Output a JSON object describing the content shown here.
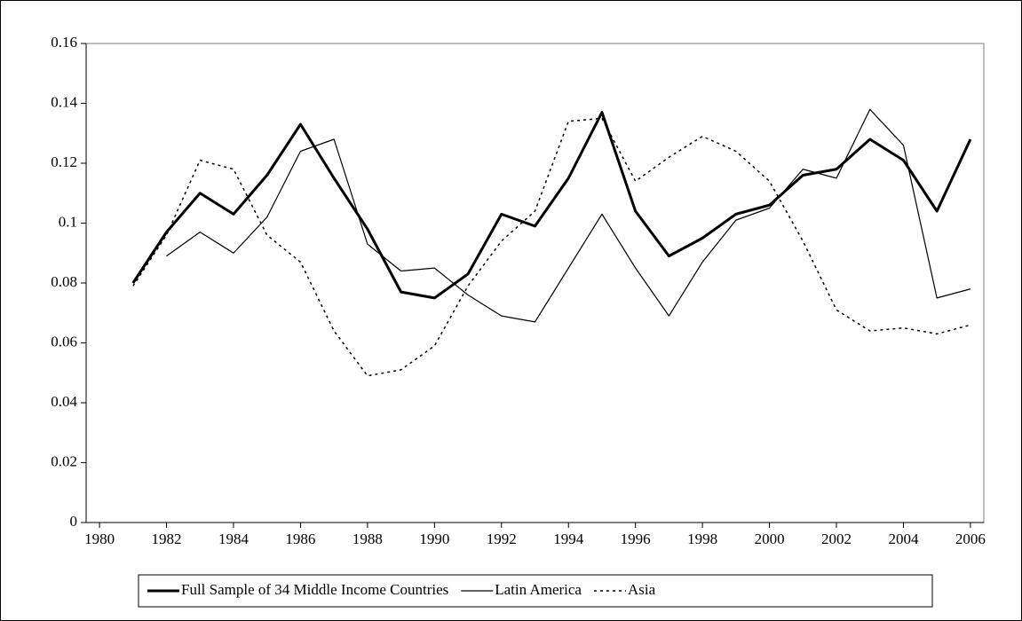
{
  "chart_data": {
    "type": "line",
    "x": [
      1981,
      1982,
      1983,
      1984,
      1985,
      1986,
      1987,
      1988,
      1989,
      1990,
      1991,
      1992,
      1993,
      1994,
      1995,
      1996,
      1997,
      1998,
      1999,
      2000,
      2001,
      2002,
      2003,
      2004,
      2005,
      2006
    ],
    "series": [
      {
        "name": "Full Sample of 34 Middle Income Countries",
        "color": "#000000",
        "linewidth": 3,
        "linestyle": "solid",
        "values": [
          0.08,
          0.097,
          0.11,
          0.103,
          0.116,
          0.133,
          0.115,
          0.098,
          0.077,
          0.075,
          0.083,
          0.103,
          0.099,
          0.115,
          0.137,
          0.104,
          0.089,
          0.095,
          0.103,
          0.106,
          0.116,
          0.118,
          0.128,
          0.121,
          0.104,
          0.128
        ]
      },
      {
        "name": "Latin America",
        "color": "#000000",
        "linewidth": 1.2,
        "linestyle": "solid",
        "values": [
          null,
          0.089,
          0.097,
          0.09,
          0.102,
          0.124,
          0.128,
          0.093,
          0.084,
          0.085,
          0.076,
          0.069,
          0.067,
          0.085,
          0.103,
          0.085,
          0.069,
          0.087,
          0.101,
          0.105,
          0.118,
          0.115,
          0.138,
          0.126,
          0.075,
          0.078
        ]
      },
      {
        "name": "Asia",
        "color": "#000000",
        "linewidth": 1.5,
        "linestyle": "dotted",
        "values": [
          0.079,
          0.096,
          0.121,
          0.118,
          0.096,
          0.087,
          0.064,
          0.049,
          0.051,
          0.059,
          0.079,
          0.094,
          0.104,
          0.134,
          0.135,
          0.114,
          0.122,
          0.129,
          0.124,
          0.114,
          0.094,
          0.071,
          0.064,
          0.065,
          0.063,
          0.066
        ]
      }
    ],
    "xlim": [
      1979.6,
      2006.4
    ],
    "xticks": [
      1980,
      1982,
      1984,
      1986,
      1988,
      1990,
      1992,
      1994,
      1996,
      1998,
      2000,
      2002,
      2004,
      2006
    ],
    "ylim": [
      0,
      0.16
    ],
    "yticks": [
      0,
      0.02,
      0.04,
      0.06,
      0.08,
      0.1,
      0.12,
      0.14,
      0.16
    ],
    "legend": "bottom"
  }
}
